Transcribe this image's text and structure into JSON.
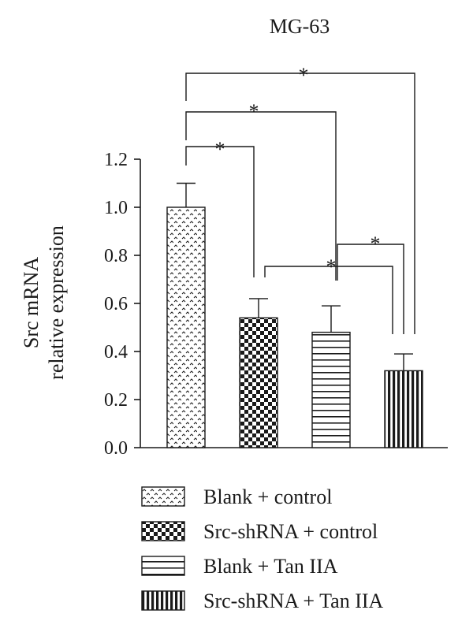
{
  "chart_data": {
    "type": "bar",
    "title": "MG-63",
    "ylabel_line1": "Src mRNA",
    "ylabel_line2": "relative expression",
    "ylim": [
      0,
      1.2
    ],
    "yticks": [
      "0.0",
      "0.2",
      "0.4",
      "0.6",
      "0.8",
      "1.0",
      "1.2"
    ],
    "grid": false,
    "legend_position": "bottom",
    "series": [
      {
        "name": "Blank + control",
        "value": 1.0,
        "error": 0.1,
        "pattern": "dots"
      },
      {
        "name": "Src-shRNA + control",
        "value": 0.54,
        "error": 0.08,
        "pattern": "checker"
      },
      {
        "name": "Blank + Tan IIA",
        "value": 0.48,
        "error": 0.11,
        "pattern": "hstripes"
      },
      {
        "name": "Src-shRNA + Tan IIA",
        "value": 0.32,
        "error": 0.07,
        "pattern": "vstripes"
      }
    ],
    "significance": [
      {
        "from": 0,
        "to": 1,
        "label": "*"
      },
      {
        "from": 0,
        "to": 2,
        "label": "*"
      },
      {
        "from": 0,
        "to": 3,
        "label": "*"
      },
      {
        "from": 1,
        "to": 3,
        "label": "*"
      },
      {
        "from": 2,
        "to": 3,
        "label": "*"
      }
    ],
    "colors": {
      "ink": "#1a1a1a",
      "background": "#ffffff"
    }
  }
}
